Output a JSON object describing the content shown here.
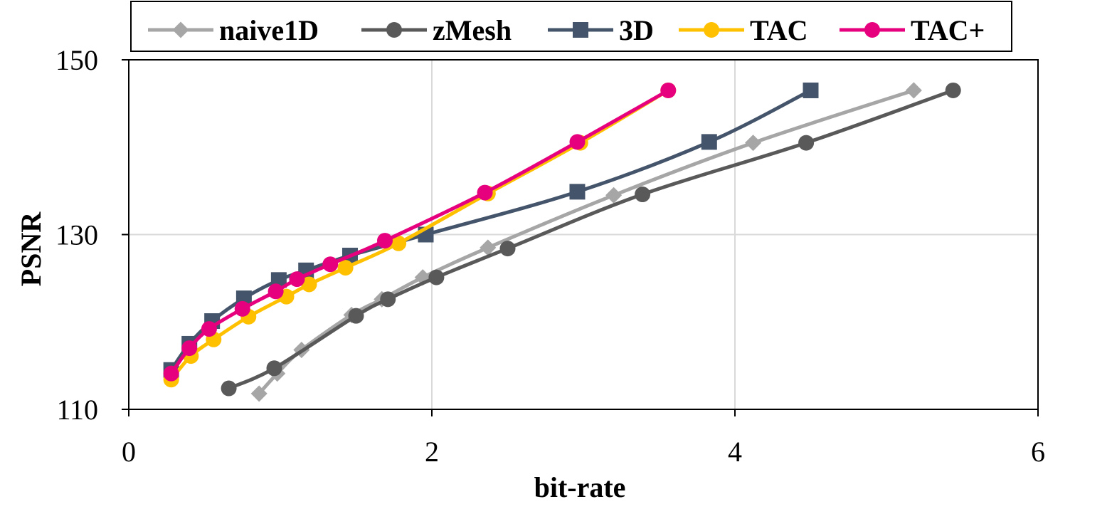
{
  "chart_data": {
    "type": "line",
    "xlabel": "bit-rate",
    "ylabel": "PSNR",
    "xlim": [
      0,
      6
    ],
    "ylim": [
      110,
      150
    ],
    "xticks": [
      0,
      2,
      4,
      6
    ],
    "yticks": [
      110,
      130,
      150
    ],
    "x_tick_labels": [
      "0",
      "2",
      "4",
      "6"
    ],
    "y_tick_labels": [
      "110",
      "130",
      "150"
    ],
    "grid": true,
    "legend_position": "top",
    "series": [
      {
        "name": "naive1D",
        "color": "#a6a6a6",
        "marker": "diamond",
        "points": [
          [
            0.86,
            111.8
          ],
          [
            0.98,
            114.1
          ],
          [
            1.14,
            116.8
          ],
          [
            1.47,
            120.8
          ],
          [
            1.67,
            122.6
          ],
          [
            1.94,
            125.1
          ],
          [
            2.37,
            128.5
          ],
          [
            3.2,
            134.5
          ],
          [
            4.12,
            140.5
          ],
          [
            5.18,
            146.5
          ]
        ]
      },
      {
        "name": "zMesh",
        "color": "#595959",
        "marker": "circle",
        "points": [
          [
            0.66,
            112.4
          ],
          [
            0.96,
            114.7
          ],
          [
            1.5,
            120.7
          ],
          [
            1.71,
            122.6
          ],
          [
            2.03,
            125.1
          ],
          [
            2.5,
            128.4
          ],
          [
            3.39,
            134.6
          ],
          [
            4.47,
            140.5
          ],
          [
            5.44,
            146.5
          ]
        ]
      },
      {
        "name": "3D",
        "color": "#44546a",
        "marker": "square",
        "points": [
          [
            0.28,
            114.5
          ],
          [
            0.4,
            117.5
          ],
          [
            0.55,
            120.1
          ],
          [
            0.76,
            122.7
          ],
          [
            0.99,
            124.8
          ],
          [
            1.17,
            125.9
          ],
          [
            1.46,
            127.6
          ],
          [
            1.96,
            130.0
          ],
          [
            2.96,
            134.9
          ],
          [
            3.83,
            140.6
          ],
          [
            4.5,
            146.5
          ]
        ]
      },
      {
        "name": "TAC",
        "color": "#ffc000",
        "marker": "circle",
        "points": [
          [
            0.28,
            113.4
          ],
          [
            0.41,
            116.1
          ],
          [
            0.56,
            118.0
          ],
          [
            0.79,
            120.6
          ],
          [
            1.04,
            122.9
          ],
          [
            1.19,
            124.3
          ],
          [
            1.43,
            126.2
          ],
          [
            1.78,
            129.0
          ],
          [
            2.37,
            134.7
          ],
          [
            2.98,
            140.5
          ],
          [
            3.56,
            146.5
          ]
        ]
      },
      {
        "name": "TAC+",
        "color": "#e6007e",
        "marker": "circle",
        "points": [
          [
            0.28,
            114.1
          ],
          [
            0.4,
            117.0
          ],
          [
            0.53,
            119.2
          ],
          [
            0.75,
            121.5
          ],
          [
            0.97,
            123.5
          ],
          [
            1.11,
            124.9
          ],
          [
            1.33,
            126.6
          ],
          [
            1.69,
            129.3
          ],
          [
            2.35,
            134.8
          ],
          [
            2.96,
            140.6
          ],
          [
            3.56,
            146.5
          ]
        ]
      }
    ]
  }
}
